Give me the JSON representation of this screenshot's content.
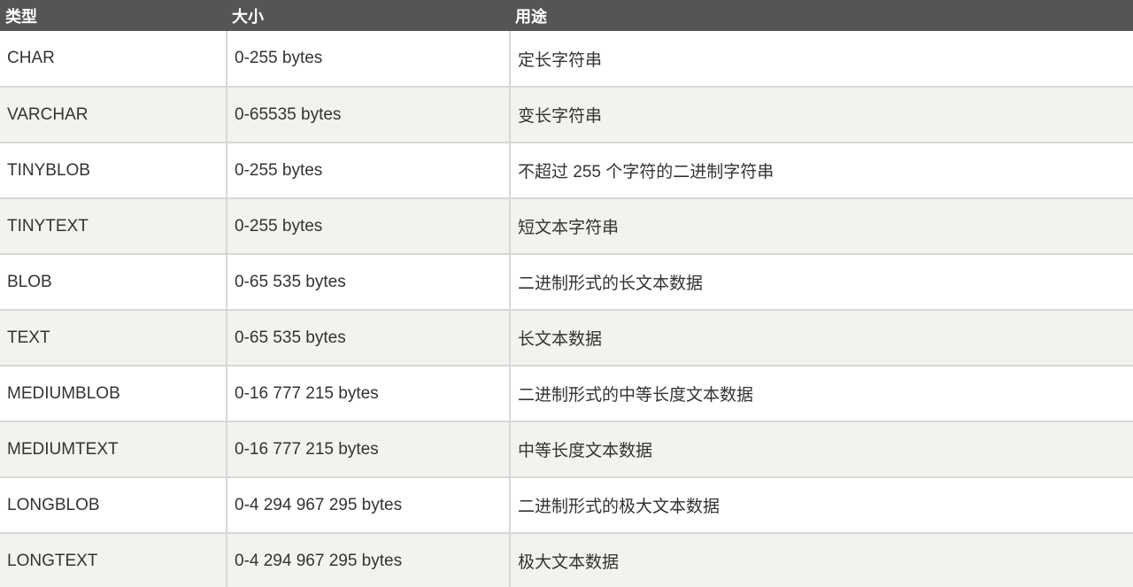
{
  "table": {
    "headers": [
      "类型",
      "大小",
      "用途"
    ],
    "rows": [
      [
        "CHAR",
        "0-255 bytes",
        "定长字符串"
      ],
      [
        "VARCHAR",
        "0-65535 bytes",
        "变长字符串"
      ],
      [
        "TINYBLOB",
        "0-255 bytes",
        "不超过 255 个字符的二进制字符串"
      ],
      [
        "TINYTEXT",
        "0-255 bytes",
        "短文本字符串"
      ],
      [
        "BLOB",
        "0-65 535 bytes",
        "二进制形式的长文本数据"
      ],
      [
        "TEXT",
        "0-65 535 bytes",
        "长文本数据"
      ],
      [
        "MEDIUMBLOB",
        "0-16 777 215 bytes",
        "二进制形式的中等长度文本数据"
      ],
      [
        "MEDIUMTEXT",
        "0-16 777 215 bytes",
        "中等长度文本数据"
      ],
      [
        "LONGBLOB",
        "0-4 294 967 295 bytes",
        "二进制形式的极大文本数据"
      ],
      [
        "LONGTEXT",
        "0-4 294 967 295 bytes",
        "极大文本数据"
      ]
    ]
  },
  "colors": {
    "header_bg": "#555555",
    "alt_row_bg": "#f3f2ee",
    "border": "#d8d8d8"
  }
}
